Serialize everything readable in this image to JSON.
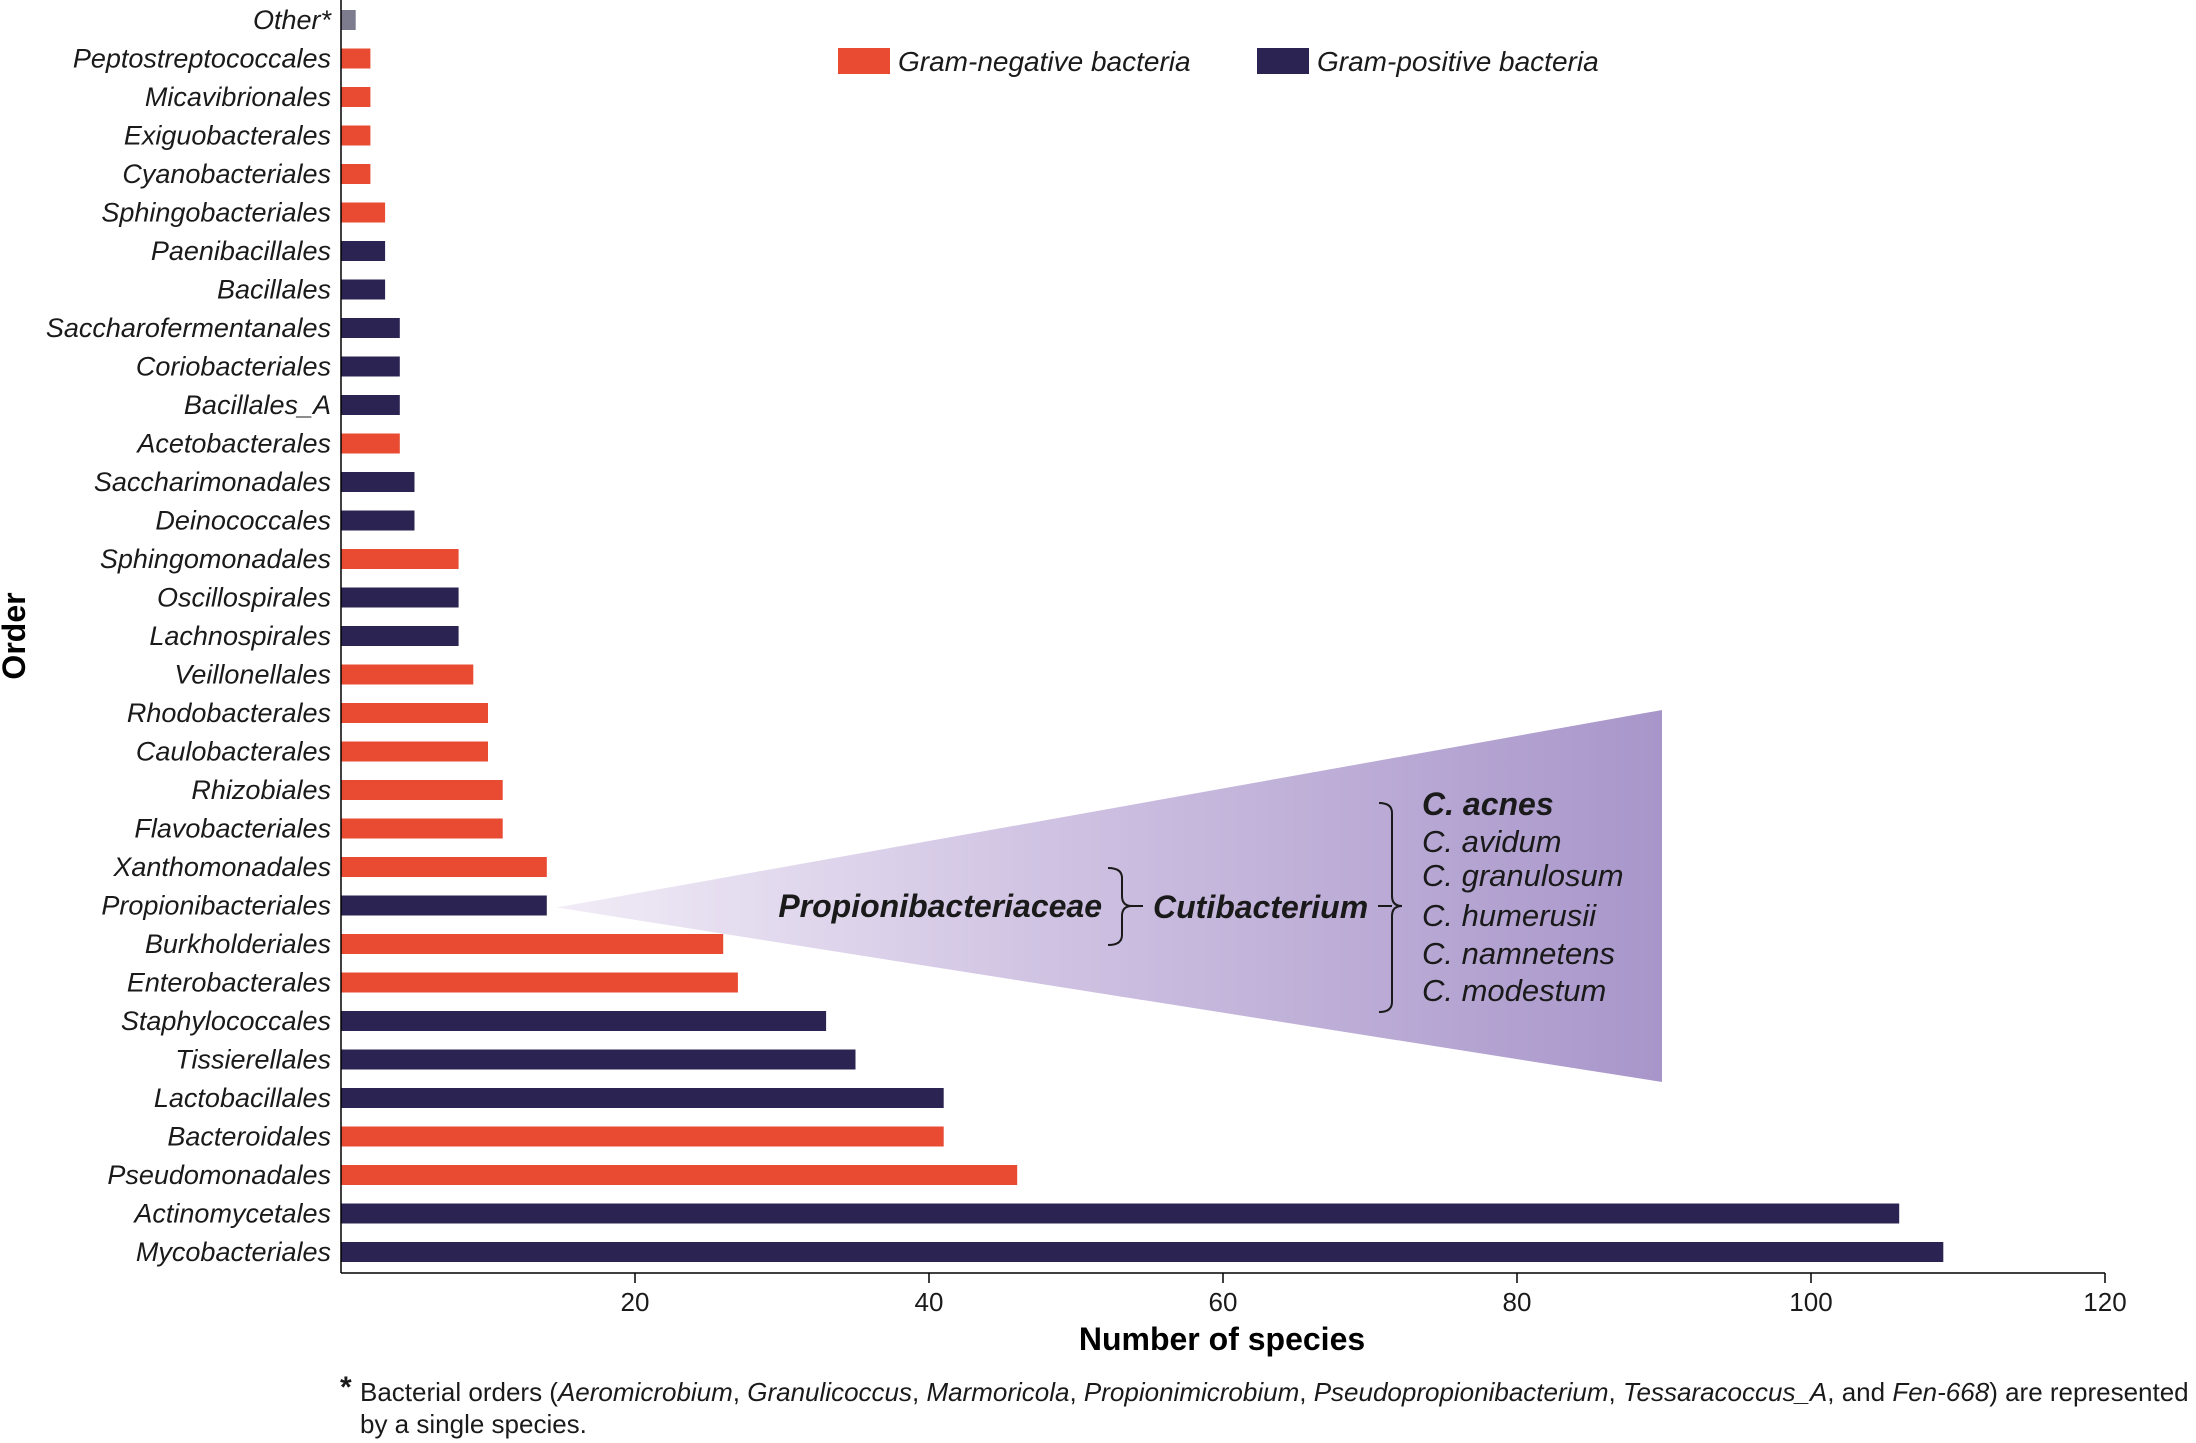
{
  "chart_data": {
    "type": "bar",
    "orientation": "horizontal",
    "xlabel": "Number of species",
    "ylabel": "Order",
    "xlim": [
      0,
      120
    ],
    "xticks": [
      20,
      40,
      60,
      80,
      100,
      120
    ],
    "legend": [
      {
        "key": "neg",
        "label": "Gram-negative bacteria",
        "color": "#e84a32"
      },
      {
        "key": "pos",
        "label": "Gram-positive bacteria",
        "color": "#2b2452"
      }
    ],
    "other_color": "#7c7c8e",
    "categories": [
      {
        "name": "Other*",
        "value": 1,
        "group": "other"
      },
      {
        "name": "Peptostreptococcales",
        "value": 2,
        "group": "neg"
      },
      {
        "name": "Micavibrionales",
        "value": 2,
        "group": "neg"
      },
      {
        "name": "Exiguobacterales",
        "value": 2,
        "group": "neg"
      },
      {
        "name": "Cyanobacteriales",
        "value": 2,
        "group": "neg"
      },
      {
        "name": "Sphingobacteriales",
        "value": 3,
        "group": "neg"
      },
      {
        "name": "Paenibacillales",
        "value": 3,
        "group": "pos"
      },
      {
        "name": "Bacillales",
        "value": 3,
        "group": "pos"
      },
      {
        "name": "Saccharofermentanales",
        "value": 4,
        "group": "pos"
      },
      {
        "name": "Coriobacteriales",
        "value": 4,
        "group": "pos"
      },
      {
        "name": "Bacillales_A",
        "value": 4,
        "group": "pos"
      },
      {
        "name": "Acetobacterales",
        "value": 4,
        "group": "neg"
      },
      {
        "name": "Saccharimonadales",
        "value": 5,
        "group": "pos"
      },
      {
        "name": "Deinococcales",
        "value": 5,
        "group": "pos"
      },
      {
        "name": "Sphingomonadales",
        "value": 8,
        "group": "neg"
      },
      {
        "name": "Oscillospirales",
        "value": 8,
        "group": "pos"
      },
      {
        "name": "Lachnospirales",
        "value": 8,
        "group": "pos"
      },
      {
        "name": "Veillonellales",
        "value": 9,
        "group": "neg"
      },
      {
        "name": "Rhodobacterales",
        "value": 10,
        "group": "neg"
      },
      {
        "name": "Caulobacterales",
        "value": 10,
        "group": "neg"
      },
      {
        "name": "Rhizobiales",
        "value": 11,
        "group": "neg"
      },
      {
        "name": "Flavobacteriales",
        "value": 11,
        "group": "neg"
      },
      {
        "name": "Xanthomonadales",
        "value": 14,
        "group": "neg"
      },
      {
        "name": "Propionibacteriales",
        "value": 14,
        "group": "pos"
      },
      {
        "name": "Burkholderiales",
        "value": 26,
        "group": "neg"
      },
      {
        "name": "Enterobacterales",
        "value": 27,
        "group": "neg"
      },
      {
        "name": "Staphylococcales",
        "value": 33,
        "group": "pos"
      },
      {
        "name": "Tissierellales",
        "value": 35,
        "group": "pos"
      },
      {
        "name": "Lactobacillales",
        "value": 41,
        "group": "pos"
      },
      {
        "name": "Bacteroidales",
        "value": 41,
        "group": "neg"
      },
      {
        "name": "Pseudomonadales",
        "value": 46,
        "group": "neg"
      },
      {
        "name": "Actinomycetales",
        "value": 106,
        "group": "pos"
      },
      {
        "name": "Mycobacteriales",
        "value": 109,
        "group": "pos"
      }
    ],
    "annotation": {
      "expands": "Propionibacteriales",
      "family": "Propionibacteriaceae",
      "genus": "Cutibacterium",
      "species": [
        "C. acnes",
        "C. avidum",
        "C. granulosum",
        "C. humerusii",
        "C. namnetens",
        "C. modestum"
      ],
      "highlighted_species": "C. acnes"
    }
  },
  "footnote": {
    "marker": "*",
    "prefix": "Bacterial orders (",
    "items": [
      "Aeromicrobium",
      "Granulicoccus",
      "Marmoricola",
      "Propionimicrobium",
      "Pseudopropionibacterium",
      "Tessaracoccus_A"
    ],
    "last_item": "Fen-668",
    "and": "and",
    "suffix": "are represented by a single species."
  }
}
